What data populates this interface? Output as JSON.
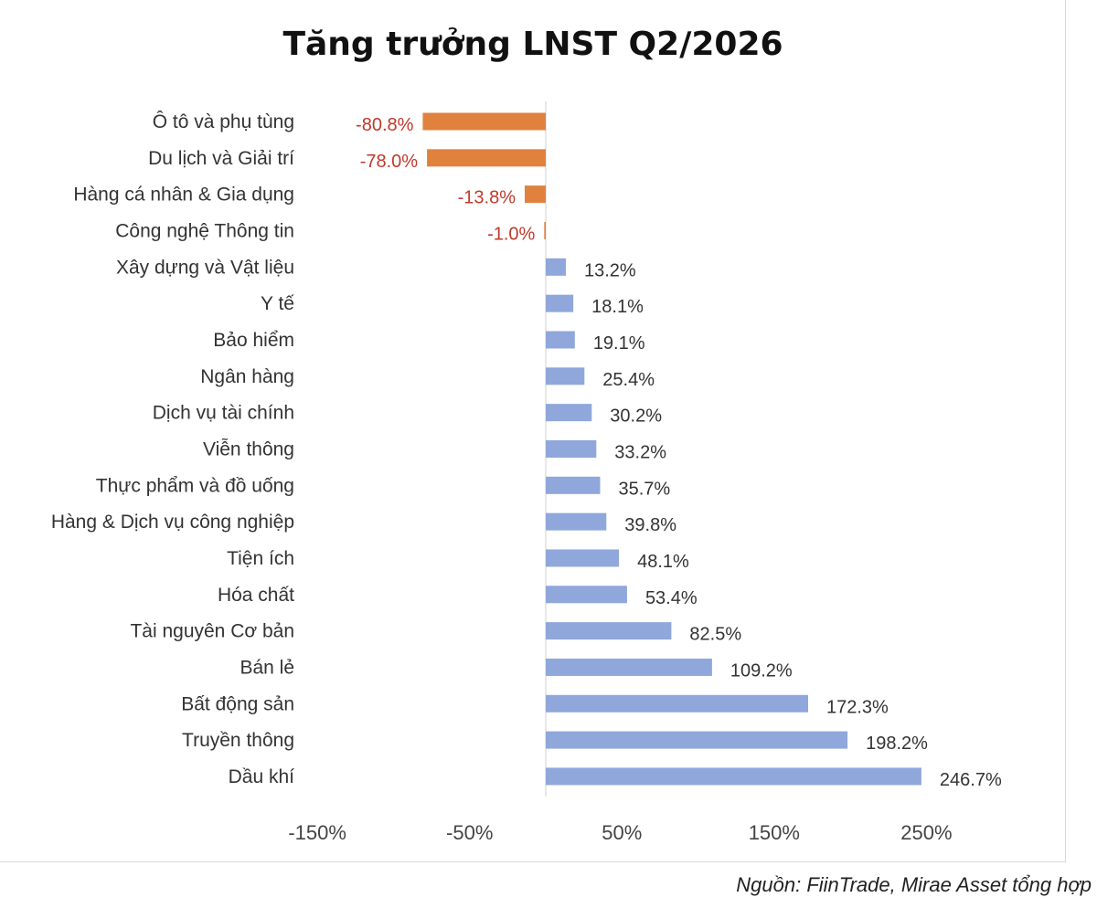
{
  "chart_data": {
    "type": "bar",
    "orientation": "horizontal",
    "title": "Tăng trưởng LNST Q2/2026",
    "categories": [
      "Ô tô và phụ tùng",
      "Du lịch và Giải trí",
      "Hàng cá nhân & Gia dụng",
      "Công nghệ Thông tin",
      "Xây dựng và Vật liệu",
      "Y tế",
      "Bảo hiểm",
      "Ngân hàng",
      "Dịch vụ tài chính",
      "Viễn thông",
      "Thực phẩm và đồ uống",
      "Hàng & Dịch vụ công nghiệp",
      "Tiện ích",
      "Hóa chất",
      "Tài nguyên Cơ bản",
      "Bán lẻ",
      "Bất động sản",
      "Truyền thông",
      "Dầu khí"
    ],
    "values": [
      -80.8,
      -78.0,
      -13.8,
      -1.0,
      13.2,
      18.1,
      19.1,
      25.4,
      30.2,
      33.2,
      35.7,
      39.8,
      48.1,
      53.4,
      82.5,
      109.2,
      172.3,
      198.2,
      246.7
    ],
    "value_labels": [
      "-80.8%",
      "-78.0%",
      "-13.8%",
      "-1.0%",
      "13.2%",
      "18.1%",
      "19.1%",
      "25.4%",
      "30.2%",
      "33.2%",
      "35.7%",
      "39.8%",
      "48.1%",
      "53.4%",
      "82.5%",
      "109.2%",
      "172.3%",
      "198.2%",
      "246.7%"
    ],
    "xticks": [
      -150,
      -50,
      50,
      150,
      250
    ],
    "xtick_labels": [
      "-150%",
      "-50%",
      "50%",
      "150%",
      "250%"
    ],
    "xlim": [
      -150,
      250
    ],
    "grid": false,
    "legend": "none",
    "colors": {
      "positive_bar": "#8fa7db",
      "negative_bar": "#e0813e",
      "negative_label": "#c0392b",
      "positive_label": "#333333"
    }
  },
  "source_note": "Nguồn: FiinTrade, Mirae Asset tổng hợp"
}
